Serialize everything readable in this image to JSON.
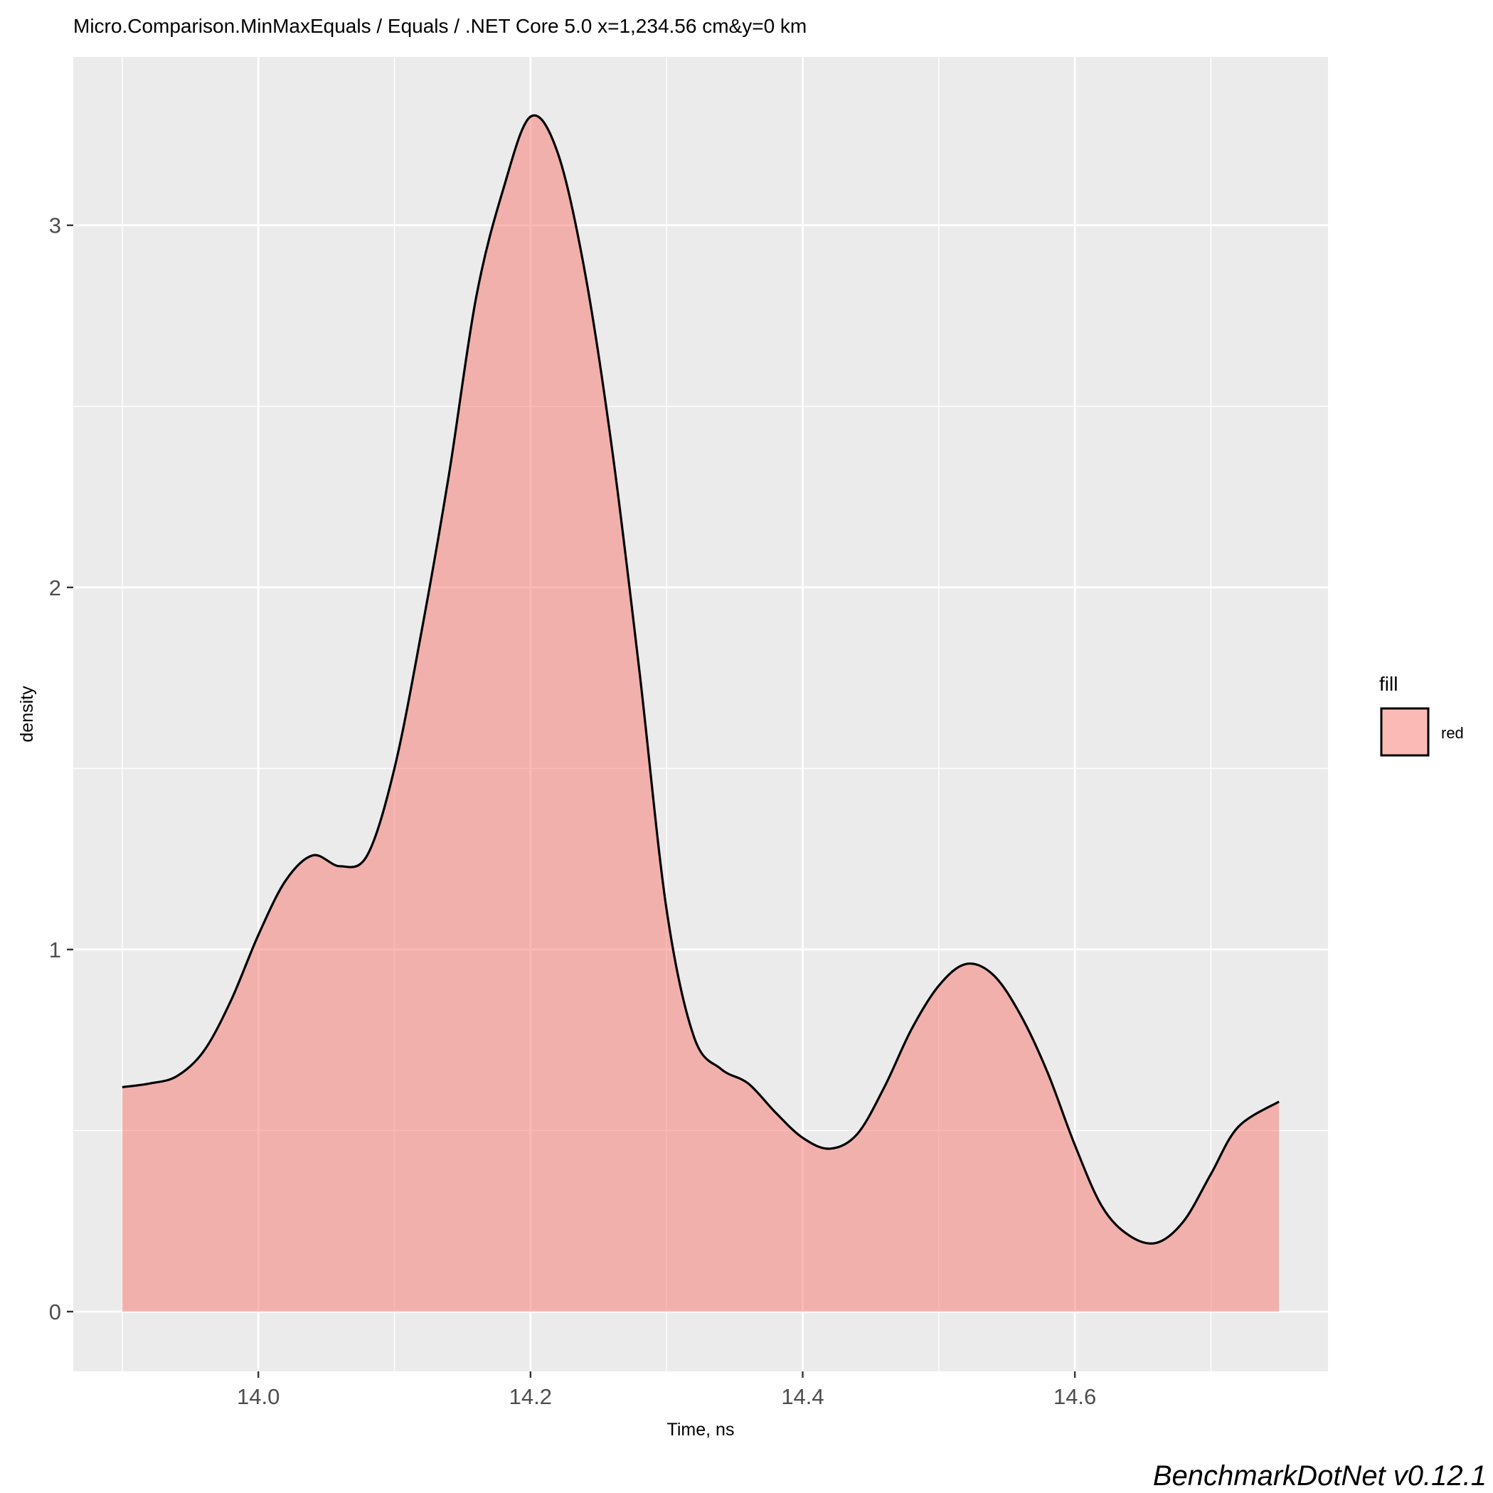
{
  "chart_data": {
    "type": "area",
    "title": "Micro.Comparison.MinMaxEquals / Equals / .NET Core 5.0 x=1,234.56 cm&y=0 km",
    "xlabel": "Time, ns",
    "ylabel": "density",
    "xlim": [
      13.864,
      14.786
    ],
    "ylim": [
      -0.165,
      3.465
    ],
    "x_ticks": [
      14.0,
      14.2,
      14.4,
      14.6
    ],
    "x_tick_labels": [
      "14.0",
      "14.2",
      "14.4",
      "14.6"
    ],
    "y_ticks": [
      0,
      1,
      2,
      3
    ],
    "y_tick_labels": [
      "0",
      "1",
      "2",
      "3"
    ],
    "grid": true,
    "legend": {
      "title": "fill",
      "position": "right",
      "entries": [
        {
          "label": "red",
          "color": "#F8766D"
        }
      ]
    },
    "caption": "BenchmarkDotNet v0.12.1",
    "series": [
      {
        "name": "red",
        "fill": "#F8766D",
        "fill_alpha": 0.5,
        "stroke": "#000000",
        "x": [
          13.9,
          13.92,
          13.94,
          13.96,
          13.98,
          14.0,
          14.02,
          14.04,
          14.06,
          14.08,
          14.1,
          14.12,
          14.14,
          14.16,
          14.18,
          14.2,
          14.22,
          14.24,
          14.26,
          14.28,
          14.3,
          14.32,
          14.34,
          14.36,
          14.38,
          14.4,
          14.42,
          14.44,
          14.46,
          14.48,
          14.5,
          14.52,
          14.54,
          14.56,
          14.58,
          14.6,
          14.62,
          14.64,
          14.66,
          14.68,
          14.7,
          14.72,
          14.75
        ],
        "y": [
          0.62,
          0.63,
          0.65,
          0.72,
          0.86,
          1.04,
          1.19,
          1.26,
          1.23,
          1.26,
          1.5,
          1.88,
          2.31,
          2.8,
          3.1,
          3.3,
          3.2,
          2.87,
          2.38,
          1.77,
          1.11,
          0.76,
          0.67,
          0.63,
          0.55,
          0.48,
          0.45,
          0.49,
          0.62,
          0.78,
          0.9,
          0.96,
          0.93,
          0.82,
          0.66,
          0.46,
          0.29,
          0.21,
          0.19,
          0.25,
          0.38,
          0.51,
          0.58
        ]
      }
    ]
  }
}
